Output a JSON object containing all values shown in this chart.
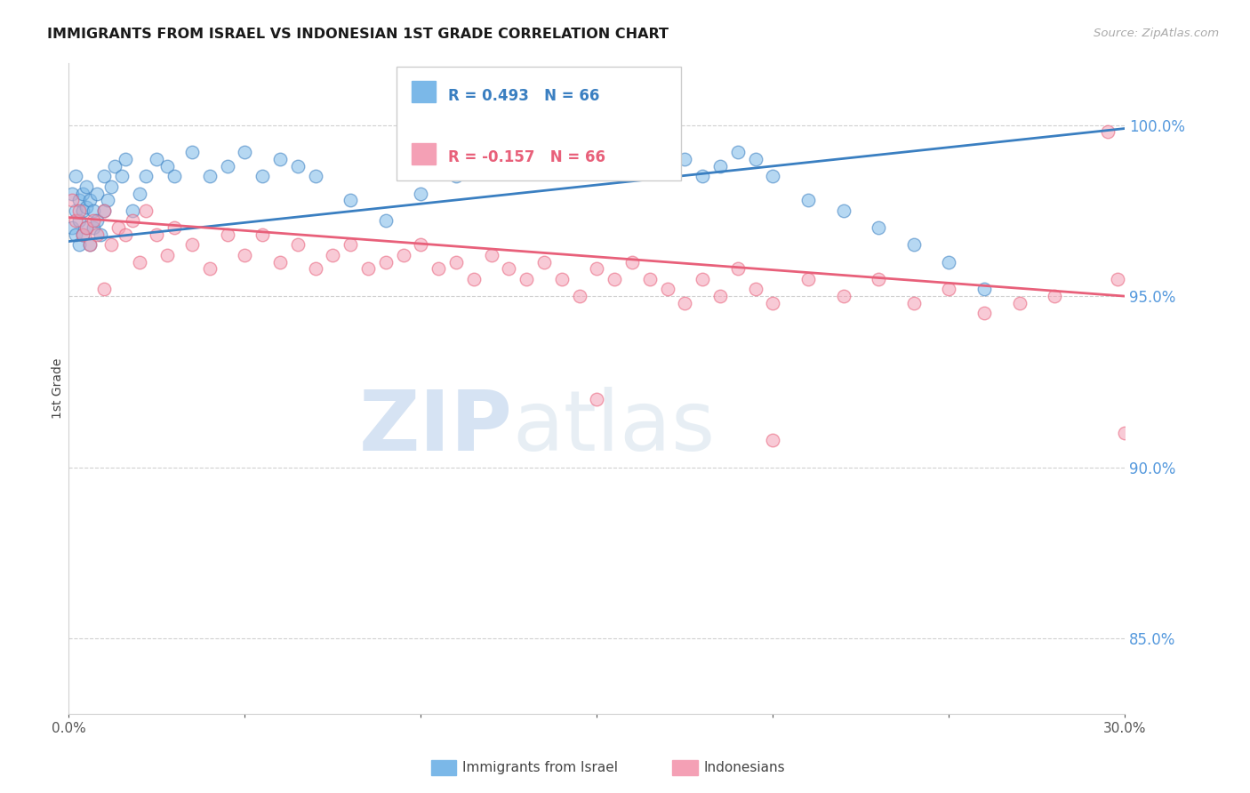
{
  "title": "IMMIGRANTS FROM ISRAEL VS INDONESIAN 1ST GRADE CORRELATION CHART",
  "source": "Source: ZipAtlas.com",
  "ylabel": "1st Grade",
  "legend_blue_label": "Immigrants from Israel",
  "legend_pink_label": "Indonesians",
  "legend_blue_R": "R = 0.493",
  "legend_blue_N": "N = 66",
  "legend_pink_R": "R = -0.157",
  "legend_pink_N": "N = 66",
  "watermark_zip": "ZIP",
  "watermark_atlas": "atlas",
  "blue_color": "#7bb8e8",
  "pink_color": "#f4a0b5",
  "blue_line_color": "#3a7fc1",
  "pink_line_color": "#e8607a",
  "grid_color": "#d0d0d0",
  "right_axis_color": "#5599dd",
  "y_axis_labels": [
    "100.0%",
    "95.0%",
    "90.0%",
    "85.0%"
  ],
  "y_axis_values": [
    1.0,
    0.95,
    0.9,
    0.85
  ],
  "x_range": [
    0.0,
    0.3
  ],
  "y_range": [
    0.828,
    1.018
  ],
  "blue_trend_x": [
    0.0,
    0.3
  ],
  "blue_trend_y": [
    0.966,
    0.999
  ],
  "pink_trend_x": [
    0.0,
    0.3
  ],
  "pink_trend_y": [
    0.973,
    0.95
  ],
  "blue_scatter_x": [
    0.001,
    0.001,
    0.002,
    0.002,
    0.002,
    0.003,
    0.003,
    0.003,
    0.004,
    0.004,
    0.004,
    0.005,
    0.005,
    0.005,
    0.006,
    0.006,
    0.007,
    0.007,
    0.008,
    0.008,
    0.009,
    0.01,
    0.01,
    0.011,
    0.012,
    0.013,
    0.015,
    0.016,
    0.018,
    0.02,
    0.022,
    0.025,
    0.028,
    0.03,
    0.035,
    0.04,
    0.045,
    0.05,
    0.055,
    0.06,
    0.065,
    0.07,
    0.08,
    0.09,
    0.1,
    0.11,
    0.12,
    0.13,
    0.14,
    0.15,
    0.155,
    0.16,
    0.165,
    0.17,
    0.175,
    0.18,
    0.185,
    0.19,
    0.195,
    0.2,
    0.21,
    0.22,
    0.23,
    0.24,
    0.25,
    0.26
  ],
  "blue_scatter_y": [
    0.98,
    0.97,
    0.975,
    0.968,
    0.985,
    0.972,
    0.978,
    0.965,
    0.98,
    0.975,
    0.968,
    0.982,
    0.976,
    0.97,
    0.978,
    0.965,
    0.975,
    0.97,
    0.98,
    0.972,
    0.968,
    0.985,
    0.975,
    0.978,
    0.982,
    0.988,
    0.985,
    0.99,
    0.975,
    0.98,
    0.985,
    0.99,
    0.988,
    0.985,
    0.992,
    0.985,
    0.988,
    0.992,
    0.985,
    0.99,
    0.988,
    0.985,
    0.978,
    0.972,
    0.98,
    0.985,
    0.988,
    0.99,
    0.992,
    0.988,
    0.99,
    0.992,
    0.995,
    0.988,
    0.99,
    0.985,
    0.988,
    0.992,
    0.99,
    0.985,
    0.978,
    0.975,
    0.97,
    0.965,
    0.96,
    0.952
  ],
  "pink_scatter_x": [
    0.001,
    0.002,
    0.003,
    0.004,
    0.005,
    0.006,
    0.007,
    0.008,
    0.01,
    0.012,
    0.014,
    0.016,
    0.018,
    0.02,
    0.022,
    0.025,
    0.028,
    0.03,
    0.035,
    0.04,
    0.045,
    0.05,
    0.055,
    0.06,
    0.065,
    0.07,
    0.075,
    0.08,
    0.085,
    0.09,
    0.095,
    0.1,
    0.105,
    0.11,
    0.115,
    0.12,
    0.125,
    0.13,
    0.135,
    0.14,
    0.145,
    0.15,
    0.155,
    0.16,
    0.165,
    0.17,
    0.175,
    0.18,
    0.185,
    0.19,
    0.195,
    0.2,
    0.21,
    0.22,
    0.23,
    0.24,
    0.25,
    0.26,
    0.27,
    0.28,
    0.15,
    0.2,
    0.295,
    0.298,
    0.3,
    0.01
  ],
  "pink_scatter_y": [
    0.978,
    0.972,
    0.975,
    0.968,
    0.97,
    0.965,
    0.972,
    0.968,
    0.975,
    0.965,
    0.97,
    0.968,
    0.972,
    0.96,
    0.975,
    0.968,
    0.962,
    0.97,
    0.965,
    0.958,
    0.968,
    0.962,
    0.968,
    0.96,
    0.965,
    0.958,
    0.962,
    0.965,
    0.958,
    0.96,
    0.962,
    0.965,
    0.958,
    0.96,
    0.955,
    0.962,
    0.958,
    0.955,
    0.96,
    0.955,
    0.95,
    0.958,
    0.955,
    0.96,
    0.955,
    0.952,
    0.948,
    0.955,
    0.95,
    0.958,
    0.952,
    0.948,
    0.955,
    0.95,
    0.955,
    0.948,
    0.952,
    0.945,
    0.948,
    0.95,
    0.92,
    0.908,
    0.998,
    0.955,
    0.91,
    0.952
  ]
}
